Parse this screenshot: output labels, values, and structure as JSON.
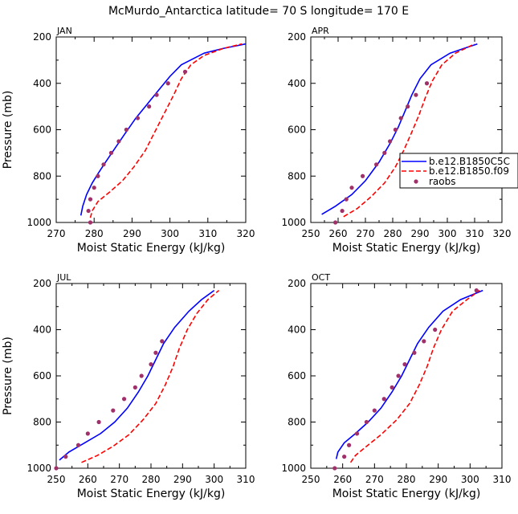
{
  "figure_title": "McMurdo_Antarctica  latitude= 70 S longitude= 170 E",
  "colors": {
    "model_a": "#0000ff",
    "model_b": "#ff0000",
    "raobs": "#a0306a"
  },
  "legend": {
    "entries": [
      {
        "label": "b.e12.B1850C5C",
        "style": "solid-blue"
      },
      {
        "label": "b.e12.B1850.f09",
        "style": "dashed-red"
      },
      {
        "label": "raobs",
        "style": "dots"
      }
    ],
    "panel": "APR"
  },
  "chart_data": [
    {
      "type": "line",
      "panel": "JAN",
      "title": "JAN",
      "xlabel": "Moist Static Energy (kJ/kg)",
      "ylabel": "Pressure (mb)",
      "xlim": [
        270,
        320
      ],
      "ylim": [
        1000,
        200
      ],
      "xticks": [
        270,
        280,
        290,
        300,
        310,
        320
      ],
      "yticks": [
        200,
        400,
        600,
        800,
        1000
      ],
      "series": [
        {
          "name": "b.e12.B1850C5C",
          "style": "solid",
          "points": [
            [
              276.5,
              970
            ],
            [
              277,
              930
            ],
            [
              278,
              880
            ],
            [
              279.5,
              830
            ],
            [
              281,
              790
            ],
            [
              283,
              740
            ],
            [
              285.5,
              680
            ],
            [
              288,
              620
            ],
            [
              291,
              550
            ],
            [
              294,
              490
            ],
            [
              297,
              430
            ],
            [
              300,
              370
            ],
            [
              303,
              320
            ],
            [
              309,
              270
            ],
            [
              314,
              250
            ],
            [
              320,
              230
            ]
          ]
        },
        {
          "name": "b.e12.B1850.f09",
          "style": "dashed",
          "points": [
            [
              279,
              980
            ],
            [
              279.5,
              950
            ],
            [
              281,
              910
            ],
            [
              284,
              870
            ],
            [
              287.5,
              820
            ],
            [
              290.5,
              760
            ],
            [
              293.5,
              690
            ],
            [
              296,
              610
            ],
            [
              298.5,
              530
            ],
            [
              301,
              450
            ],
            [
              303,
              380
            ],
            [
              305.5,
              320
            ],
            [
              309,
              280
            ],
            [
              314,
              250
            ],
            [
              319,
              230
            ]
          ]
        }
      ],
      "raobs": [
        [
          279,
          1000
        ],
        [
          278.5,
          950
        ],
        [
          279,
          900
        ],
        [
          280,
          850
        ],
        [
          281,
          800
        ],
        [
          282.5,
          750
        ],
        [
          284.5,
          700
        ],
        [
          286.5,
          650
        ],
        [
          288.5,
          600
        ],
        [
          291.5,
          550
        ],
        [
          294.5,
          500
        ],
        [
          296.5,
          450
        ],
        [
          299.5,
          400
        ],
        [
          304,
          350
        ]
      ]
    },
    {
      "type": "line",
      "panel": "APR",
      "title": "APR",
      "xlabel": "Moist Static Energy (kJ/kg)",
      "ylabel": "",
      "xlim": [
        250,
        320
      ],
      "ylim": [
        1000,
        200
      ],
      "xticks": [
        250,
        260,
        270,
        280,
        290,
        300,
        310,
        320
      ],
      "yticks": [
        200,
        400,
        600,
        800,
        1000
      ],
      "series": [
        {
          "name": "b.e12.B1850C5C",
          "style": "solid",
          "points": [
            [
              254,
              965
            ],
            [
              259,
              930
            ],
            [
              265,
              880
            ],
            [
              270,
              820
            ],
            [
              275,
              740
            ],
            [
              279,
              660
            ],
            [
              282,
              590
            ],
            [
              284.5,
              520
            ],
            [
              287,
              450
            ],
            [
              290,
              380
            ],
            [
              294,
              320
            ],
            [
              301,
              270
            ],
            [
              306,
              250
            ],
            [
              311,
              230
            ]
          ]
        },
        {
          "name": "b.e12.B1850.f09",
          "style": "dashed",
          "points": [
            [
              262,
              975
            ],
            [
              267,
              940
            ],
            [
              272,
              890
            ],
            [
              277,
              830
            ],
            [
              281,
              760
            ],
            [
              284,
              690
            ],
            [
              287,
              610
            ],
            [
              289.5,
              540
            ],
            [
              292,
              460
            ],
            [
              294.5,
              390
            ],
            [
              298,
              320
            ],
            [
              303,
              270
            ],
            [
              310,
              230
            ]
          ]
        }
      ],
      "raobs": [
        [
          259,
          1000
        ],
        [
          261.5,
          950
        ],
        [
          263,
          900
        ],
        [
          265,
          850
        ],
        [
          269,
          800
        ],
        [
          274,
          750
        ],
        [
          277,
          700
        ],
        [
          279,
          650
        ],
        [
          281,
          600
        ],
        [
          283,
          550
        ],
        [
          285.5,
          500
        ],
        [
          288.5,
          450
        ],
        [
          292.5,
          400
        ]
      ]
    },
    {
      "type": "line",
      "panel": "JUL",
      "title": "JUL",
      "xlabel": "Moist Static Energy (kJ/kg)",
      "ylabel": "Pressure (mb)",
      "xlim": [
        250,
        310
      ],
      "ylim": [
        1000,
        200
      ],
      "xticks": [
        250,
        260,
        270,
        280,
        290,
        300,
        310
      ],
      "yticks": [
        200,
        400,
        600,
        800,
        1000
      ],
      "series": [
        {
          "name": "b.e12.B1850C5C",
          "style": "solid",
          "points": [
            [
              251,
              965
            ],
            [
              254,
              930
            ],
            [
              259,
              890
            ],
            [
              264,
              850
            ],
            [
              268.5,
              800
            ],
            [
              272.5,
              740
            ],
            [
              276,
              670
            ],
            [
              279,
              600
            ],
            [
              281.5,
              530
            ],
            [
              284,
              460
            ],
            [
              287.5,
              390
            ],
            [
              292,
              320
            ],
            [
              296,
              270
            ],
            [
              300,
              230
            ]
          ]
        },
        {
          "name": "b.e12.B1850.f09",
          "style": "dashed",
          "points": [
            [
              258,
              975
            ],
            [
              263,
              945
            ],
            [
              268,
              905
            ],
            [
              273,
              855
            ],
            [
              277.5,
              790
            ],
            [
              281.5,
              720
            ],
            [
              284.5,
              640
            ],
            [
              287,
              560
            ],
            [
              289,
              480
            ],
            [
              291.5,
              400
            ],
            [
              294.5,
              330
            ],
            [
              298,
              270
            ],
            [
              301.5,
              230
            ]
          ]
        }
      ],
      "raobs": [
        [
          250,
          1000
        ],
        [
          253,
          950
        ],
        [
          257,
          900
        ],
        [
          260,
          850
        ],
        [
          263.5,
          800
        ],
        [
          268,
          750
        ],
        [
          271.5,
          700
        ],
        [
          275,
          650
        ],
        [
          277,
          600
        ],
        [
          280,
          550
        ],
        [
          281.5,
          500
        ],
        [
          283.5,
          450
        ]
      ]
    },
    {
      "type": "line",
      "panel": "OCT",
      "title": "OCT",
      "xlabel": "Moist Static Energy (kJ/kg)",
      "ylabel": "",
      "xlim": [
        250,
        310
      ],
      "ylim": [
        1000,
        200
      ],
      "xticks": [
        250,
        260,
        270,
        280,
        290,
        300,
        310
      ],
      "yticks": [
        200,
        400,
        600,
        800,
        1000
      ],
      "series": [
        {
          "name": "b.e12.B1850C5C",
          "style": "solid",
          "points": [
            [
              258,
              960
            ],
            [
              258.5,
              930
            ],
            [
              260.5,
              890
            ],
            [
              264,
              850
            ],
            [
              268,
              800
            ],
            [
              272,
              740
            ],
            [
              275.5,
              670
            ],
            [
              278.5,
              600
            ],
            [
              281,
              530
            ],
            [
              283.5,
              460
            ],
            [
              287,
              390
            ],
            [
              291.5,
              320
            ],
            [
              297,
              270
            ],
            [
              304,
              230
            ]
          ]
        },
        {
          "name": "b.e12.B1850.f09",
          "style": "dashed",
          "points": [
            [
              262.5,
              975
            ],
            [
              264,
              945
            ],
            [
              267.5,
              905
            ],
            [
              272,
              855
            ],
            [
              277,
              790
            ],
            [
              281,
              720
            ],
            [
              284,
              640
            ],
            [
              286.5,
              560
            ],
            [
              288.5,
              480
            ],
            [
              291,
              400
            ],
            [
              294.5,
              320
            ],
            [
              299,
              270
            ],
            [
              303,
              230
            ]
          ]
        }
      ],
      "raobs": [
        [
          257.5,
          1000
        ],
        [
          260.5,
          950
        ],
        [
          262,
          900
        ],
        [
          264.5,
          850
        ],
        [
          267.5,
          800
        ],
        [
          270,
          750
        ],
        [
          273,
          700
        ],
        [
          275.5,
          650
        ],
        [
          277.5,
          600
        ],
        [
          279.5,
          550
        ],
        [
          282.5,
          500
        ],
        [
          285.5,
          450
        ],
        [
          289,
          400
        ],
        [
          302,
          230
        ]
      ]
    }
  ]
}
